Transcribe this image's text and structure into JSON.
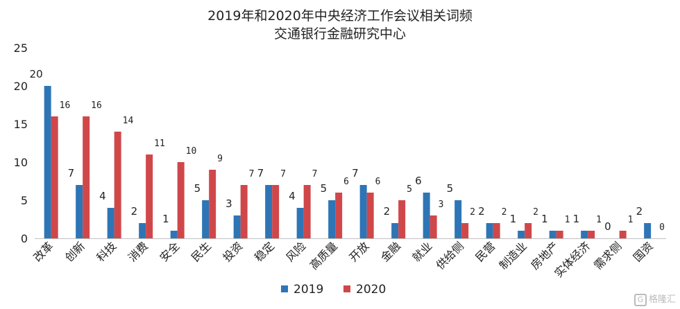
{
  "chart_data": {
    "type": "bar",
    "title": "2019年和2020年中央经济工作会议相关词频",
    "subtitle": "交通银行金融研究中心",
    "xlabel": "",
    "ylabel": "",
    "ylim": [
      0,
      25
    ],
    "yticks": [
      0,
      5,
      10,
      15,
      20,
      25
    ],
    "grid": false,
    "legend_position": "bottom-center",
    "categories": [
      "改革",
      "创新",
      "科技",
      "消费",
      "安全",
      "民生",
      "投资",
      "稳定",
      "风险",
      "高质量",
      "开放",
      "金融",
      "就业",
      "供给侧",
      "民营",
      "制造业",
      "房地产",
      "实体经济",
      "需求侧",
      "国资"
    ],
    "series": [
      {
        "name": "2019",
        "color": "#2e75b6",
        "values": [
          20,
          7,
          4,
          2,
          1,
          5,
          3,
          7,
          4,
          5,
          7,
          2,
          6,
          5,
          2,
          1,
          1,
          1,
          0,
          2
        ]
      },
      {
        "name": "2020",
        "color": "#d0474a",
        "values": [
          16,
          16,
          14,
          11,
          10,
          9,
          7,
          7,
          7,
          6,
          6,
          5,
          3,
          2,
          2,
          2,
          1,
          1,
          1,
          0
        ]
      }
    ]
  },
  "watermark": "格隆汇"
}
